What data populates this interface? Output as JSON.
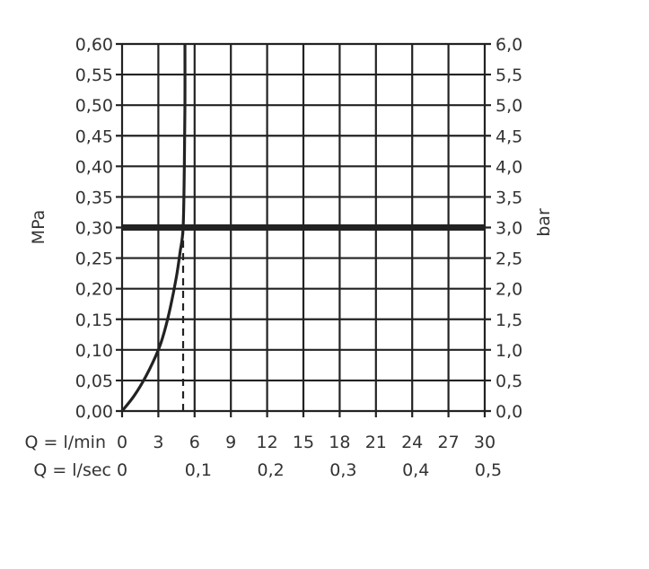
{
  "chart_data": {
    "type": "line",
    "title": "",
    "ylabel_left": "MPa",
    "ylabel_right": "bar",
    "xlabel_rows": [
      {
        "label": "Q = l/min",
        "ticks": [
          "0",
          "3",
          "6",
          "9",
          "12",
          "15",
          "18",
          "21",
          "24",
          "27",
          "30"
        ],
        "values": [
          0,
          3,
          6,
          9,
          12,
          15,
          18,
          21,
          24,
          27,
          30
        ]
      },
      {
        "label": "Q = l/sec",
        "ticks": [
          "0",
          "0,1",
          "0,2",
          "0,3",
          "0,4",
          "0,5"
        ],
        "values": [
          0,
          6,
          12,
          18,
          24,
          30
        ]
      }
    ],
    "xlim": [
      0,
      30
    ],
    "ylim": [
      0,
      0.6
    ],
    "yticks_left": [
      "0,00",
      "0,05",
      "0,10",
      "0,15",
      "0,20",
      "0,25",
      "0,30",
      "0,35",
      "0,40",
      "0,45",
      "0,50",
      "0,55",
      "0,60"
    ],
    "yticks_right": [
      "0,0",
      "0,5",
      "1,0",
      "1,5",
      "2,0",
      "2,5",
      "3,0",
      "3,5",
      "4,0",
      "4,5",
      "5,0",
      "5,5",
      "6,0"
    ],
    "grid": true,
    "series": [
      {
        "x": [
          0,
          1,
          2,
          3,
          3.5,
          4,
          4.5,
          4.8,
          5.05,
          5.15,
          5.2,
          5.2
        ],
        "y": [
          0,
          0.025,
          0.058,
          0.1,
          0.13,
          0.17,
          0.22,
          0.26,
          0.3,
          0.4,
          0.5,
          0.6
        ],
        "color": "#222222",
        "style": "solid"
      }
    ],
    "reference_lines": [
      {
        "orientation": "horizontal",
        "y": 0.3,
        "style": "thick"
      },
      {
        "orientation": "vertical",
        "x": 5.05,
        "y_range": [
          0,
          0.3
        ],
        "style": "dashed"
      }
    ]
  }
}
